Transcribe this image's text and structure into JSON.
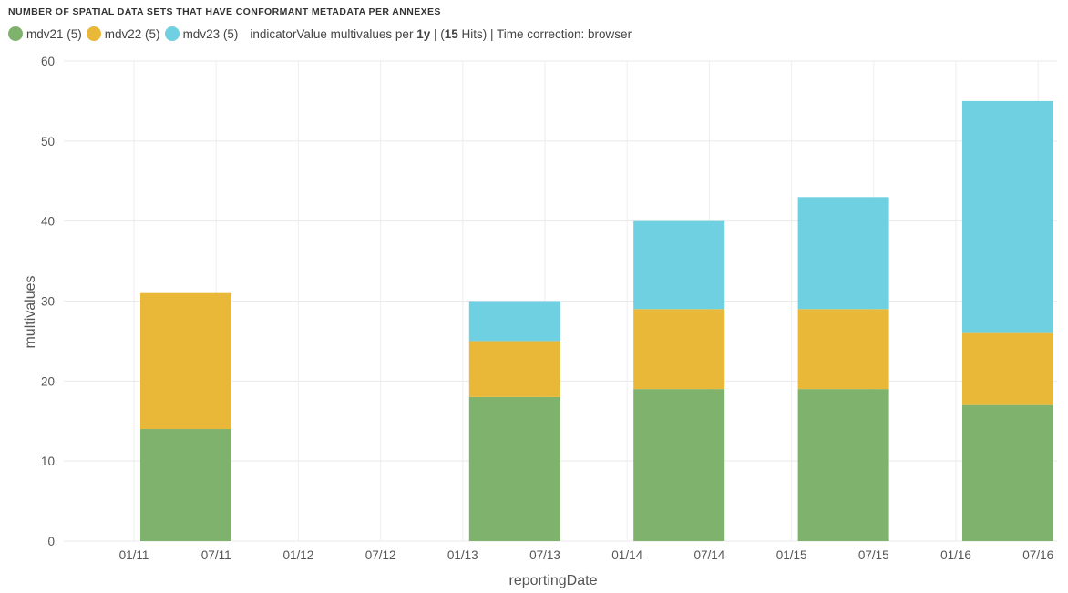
{
  "panel": {
    "title": "NUMBER OF SPATIAL DATA SETS THAT HAVE CONFORMANT METADATA PER ANNEXES"
  },
  "legend": {
    "items": [
      {
        "label": "mdv21 (5)",
        "color": "#7eb26d"
      },
      {
        "label": "mdv22 (5)",
        "color": "#eab839"
      },
      {
        "label": "mdv23 (5)",
        "color": "#6ed0e0"
      }
    ],
    "info_prefix": "indicatorValue multivalues per ",
    "info_interval": "1y",
    "info_middle": " | (",
    "info_hits": "15",
    "info_suffix": " Hits) | Time correction: browser"
  },
  "chart_data": {
    "type": "bar",
    "stacked": true,
    "xlabel": "reportingDate",
    "ylabel": "multivalues",
    "ylim": [
      0,
      60
    ],
    "yticks": [
      0,
      10,
      20,
      30,
      40,
      50,
      60
    ],
    "x_ticks": [
      "01/11",
      "07/11",
      "01/12",
      "07/12",
      "01/13",
      "07/13",
      "01/14",
      "07/14",
      "01/15",
      "07/15",
      "01/16",
      "07/16"
    ],
    "categories": [
      "2011",
      "2013",
      "2014",
      "2015",
      "2016"
    ],
    "series": [
      {
        "name": "mdv21",
        "color": "#7eb26d",
        "values": [
          14,
          18,
          19,
          19,
          17
        ]
      },
      {
        "name": "mdv22",
        "color": "#eab839",
        "values": [
          17,
          7,
          10,
          10,
          9
        ]
      },
      {
        "name": "mdv23",
        "color": "#6ed0e0",
        "values": [
          0,
          5,
          11,
          14,
          29
        ]
      }
    ],
    "grid": true,
    "legend_position": "top-left"
  }
}
